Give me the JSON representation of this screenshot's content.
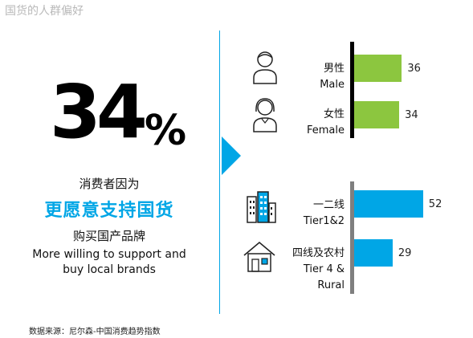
{
  "header": {
    "title": "国货的人群偏好"
  },
  "headline": {
    "number": "34",
    "percent_sign": "%",
    "line1": "消费者因为",
    "highlight": "更愿意支持国货",
    "line2": "购买国产品牌",
    "english_line1": "More willing to support and",
    "english_line2": "buy local brands"
  },
  "source": "数据来源：尼尔森-中国消费趋势指数",
  "colors": {
    "accent": "#00a6e6",
    "green": "#8cc63f",
    "axis_dark": "#000000",
    "axis_gray": "#7f7f7f"
  },
  "chart_data": [
    {
      "type": "bar",
      "orientation": "horizontal",
      "categories": [
        "男性 Male",
        "女性 Female"
      ],
      "labels_cn": [
        "男性",
        "女性"
      ],
      "labels_en": [
        "Male",
        "Female"
      ],
      "icons": [
        "male-person-icon",
        "female-person-icon"
      ],
      "values": [
        36,
        34
      ],
      "color": "#8cc63f",
      "xlim": [
        0,
        56
      ]
    },
    {
      "type": "bar",
      "orientation": "horizontal",
      "categories": [
        "一二线 Tier1&2",
        "四线及农村 Tier 4 & Rural"
      ],
      "labels_cn": [
        "一二线",
        "四线及农村"
      ],
      "labels_en": [
        "Tier1&2",
        "Tier 4 &",
        "Rural"
      ],
      "icons": [
        "city-buildings-icon",
        "rural-house-icon"
      ],
      "values": [
        52,
        29
      ],
      "color": "#00a6e6",
      "xlim": [
        0,
        56
      ]
    }
  ]
}
